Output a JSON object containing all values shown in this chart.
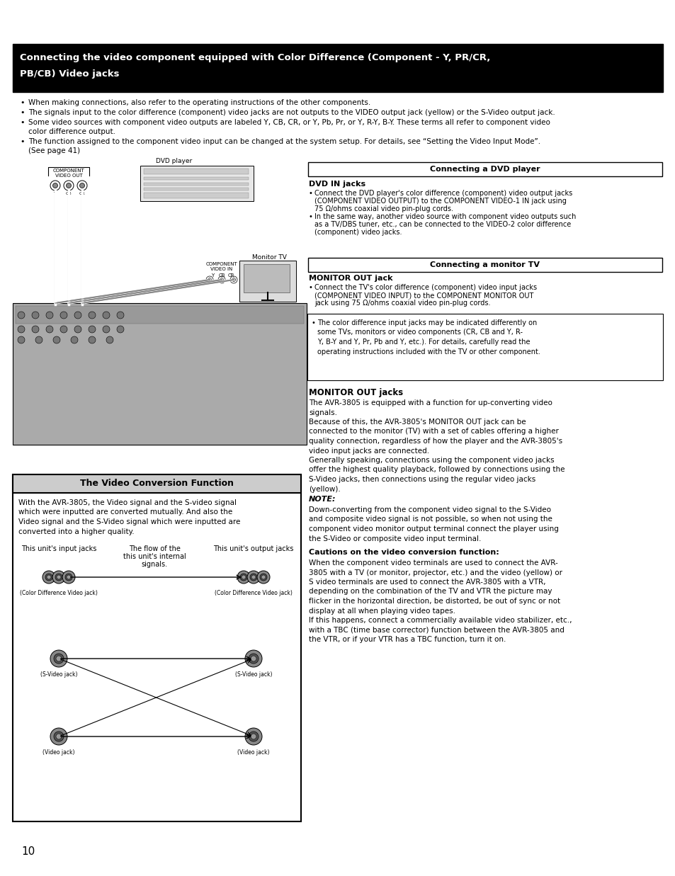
{
  "page_number": "10",
  "background_color": "#ffffff",
  "header_bg_color": "#000000",
  "header_text_color": "#ffffff",
  "header_title_line1": "Connecting the video component equipped with Color Difference (Component - Y, PR/CR,",
  "header_title_line2": "PB/CB) Video jacks",
  "bullet_points": [
    "When making connections, also refer to the operating instructions of the other components.",
    "The signals input to the color difference (component) video jacks are not outputs to the VIDEO output jack (yellow) or the S-Video output jack.",
    "Some video sources with component video outputs are labeled Y, CB, CR, or Y, Pb, Pr, or Y, R-Y, B-Y. These terms all refer to component video",
    "color difference output.",
    "The function assigned to the component video input can be changed at the system setup. For details, see Setting the Video Input Mode.",
    "(See page 41)"
  ],
  "dvd_box_title": "Connecting a DVD player",
  "dvd_section_subtitle": "DVD IN jacks",
  "dvd_bullet1_line1": "Connect the DVD player's color difference (component) video output jacks",
  "dvd_bullet1_line2": "(COMPONENT VIDEO OUTPUT) to the COMPONENT VIDEO-1 IN jack using",
  "dvd_bullet1_line3": "75 ohms coaxial video pin-plug cords.",
  "dvd_bullet2_line1": "In the same way, another video source with component video outputs such",
  "dvd_bullet2_line2": "as a TV/DBS tuner, etc., can be connected to the VIDEO-2 color difference",
  "dvd_bullet2_line3": "(component) video jacks.",
  "monitor_box_title": "Connecting a monitor TV",
  "monitor_section_subtitle": "MONITOR OUT jack",
  "monitor_bullet1_line1": "Connect the TV's color difference (component) video input jacks",
  "monitor_bullet1_line2": "(COMPONENT VIDEO INPUT) to the COMPONENT MONITOR OUT",
  "monitor_bullet1_line3": "jack using 75 ohms coaxial video pin-plug cords.",
  "note_box_lines": [
    "The color difference input jacks may be indicated differently on",
    "some TVs, monitors or video components (CR, CB and Y, R-",
    "Y, B-Y and Y, Pr, Pb and Y, etc.). For details, carefully read the",
    "operating instructions included with the TV or other component."
  ],
  "monitor_out_title": "MONITOR OUT jacks",
  "monitor_out_lines": [
    "The AVR-3805 is equipped with a function for up-converting video",
    "signals.",
    "Because of this, the AVR-3805's MONITOR OUT jack can be",
    "connected to the monitor (TV) with a set of cables offering a higher",
    "quality connection, regardless of how the player and the AVR-3805's",
    "video input jacks are connected.",
    "Generally speaking, connections using the component video jacks",
    "offer the highest quality playback, followed by connections using the",
    "S-Video jacks, then connections using the regular video jacks",
    "(yellow)."
  ],
  "note_title": "NOTE:",
  "note_lines": [
    "Down-converting from the component video signal to the S-Video",
    "and composite video signal is not possible, so when not using the",
    "component video monitor output terminal connect the player using",
    "the S-Video or composite video input terminal."
  ],
  "caution_title": "Cautions on the video conversion function:",
  "caution_lines": [
    "When the component video terminals are used to connect the AVR-",
    "3805 with a TV (or monitor, projector, etc.) and the video (yellow) or",
    "S video terminals are used to connect the AVR-3805 with a VTR,",
    "depending on the combination of the TV and VTR the picture may",
    "flicker in the horizontal direction, be distorted, be out of sync or not",
    "display at all when playing video tapes.",
    "If this happens, connect a commercially available video stabilizer, etc.,",
    "with a TBC (time base corrector) function between the AVR-3805 and",
    "the VTR, or if your VTR has a TBC function, turn it on."
  ],
  "video_conversion_title": "The Video Conversion Function",
  "video_conversion_lines": [
    "With the AVR-3805, the Video signal and the S-video signal",
    "which were inputted are converted mutually. And also the",
    "Video signal and the S-Video signal which were inputted are",
    "converted into a higher quality."
  ],
  "input_label": "This unit's input jacks",
  "flow_label_lines": [
    "The flow of the",
    "this unit's internal",
    "signals."
  ],
  "output_label": "This unit's output jacks",
  "jack_labels_input": [
    "(Color Difference Video jack)",
    "(S-Video jack)",
    "(Video jack)"
  ],
  "jack_labels_output": [
    "(Color Difference Video jack)",
    "(S-Video jack)",
    "(Video jack)"
  ]
}
